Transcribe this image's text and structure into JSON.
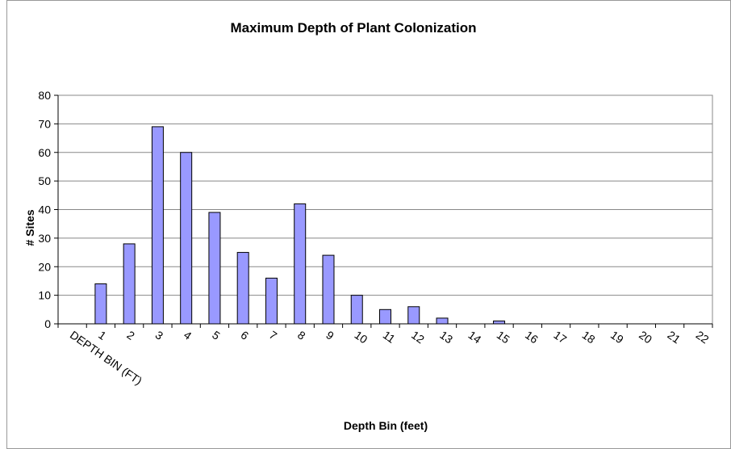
{
  "chart_data": {
    "type": "bar",
    "title": "Maximum Depth of Plant Colonization",
    "x_label": "Depth Bin (feet)",
    "y_label": "# Sites",
    "categories": [
      "DEPTH BIN (FT)",
      "1",
      "2",
      "3",
      "4",
      "5",
      "6",
      "7",
      "8",
      "9",
      "10",
      "11",
      "12",
      "13",
      "14",
      "15",
      "16",
      "17",
      "18",
      "19",
      "20",
      "21",
      "22"
    ],
    "values": [
      null,
      14,
      28,
      69,
      60,
      39,
      25,
      16,
      42,
      24,
      10,
      5,
      6,
      2,
      0,
      1,
      0,
      0,
      0,
      0,
      0,
      0,
      0
    ],
    "color": "#9999ff",
    "ylim": [
      0,
      80
    ],
    "yticks": [
      0,
      10,
      20,
      30,
      40,
      50,
      60,
      70,
      80
    ],
    "grid": true
  }
}
